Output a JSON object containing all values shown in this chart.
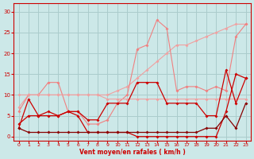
{
  "bg_color": "#cce8e8",
  "grid_color": "#aacccc",
  "line_color_light1": "#f0a0a0",
  "line_color_light2": "#f08080",
  "line_color_dark": "#cc0000",
  "xlabel": "Vent moyen/en rafales ( km/h )",
  "xlabel_color": "#cc0000",
  "tick_color": "#cc0000",
  "xlim": [
    -0.5,
    23.5
  ],
  "ylim": [
    -1,
    32
  ],
  "yticks": [
    0,
    5,
    10,
    15,
    20,
    25,
    30
  ],
  "xticks": [
    0,
    1,
    2,
    3,
    4,
    5,
    6,
    7,
    8,
    9,
    10,
    11,
    12,
    13,
    14,
    15,
    16,
    17,
    18,
    19,
    20,
    21,
    22,
    23
  ],
  "series": [
    {
      "x": [
        0,
        1,
        2,
        3,
        4,
        5,
        6,
        7,
        8,
        9,
        10,
        11,
        12,
        13,
        14,
        15,
        16,
        17,
        18,
        19,
        20,
        21,
        22,
        23
      ],
      "y": [
        7,
        10,
        10,
        10,
        10,
        10,
        10,
        10,
        10,
        10,
        11,
        12,
        14,
        16,
        18,
        20,
        22,
        22,
        23,
        24,
        25,
        26,
        27,
        27
      ],
      "color": "#f0a0a0",
      "lw": 0.8,
      "ms": 2.0
    },
    {
      "x": [
        0,
        1,
        2,
        3,
        4,
        5,
        6,
        7,
        8,
        9,
        10,
        11,
        12,
        13,
        14,
        15,
        16,
        17,
        18,
        19,
        20,
        21,
        22,
        23
      ],
      "y": [
        6,
        10,
        10,
        13,
        13,
        6,
        6,
        3,
        3,
        4,
        8,
        10,
        21,
        22,
        28,
        26,
        11,
        12,
        12,
        11,
        12,
        11,
        24,
        27
      ],
      "color": "#f08080",
      "lw": 0.8,
      "ms": 2.0
    },
    {
      "x": [
        0,
        1,
        2,
        3,
        4,
        5,
        6,
        7,
        8,
        9,
        10,
        11,
        12,
        13,
        14,
        15,
        16,
        17,
        18,
        19,
        20,
        21,
        22,
        23
      ],
      "y": [
        10,
        10,
        10,
        10,
        10,
        10,
        10,
        10,
        10,
        9,
        9,
        9,
        9,
        9,
        9,
        9,
        9,
        9,
        9,
        9,
        9,
        9,
        9,
        9
      ],
      "color": "#f0a0a0",
      "lw": 0.8,
      "ms": 2.0
    },
    {
      "x": [
        0,
        1,
        2,
        3,
        4,
        5,
        6,
        7,
        8,
        9,
        10,
        11,
        12,
        13,
        14,
        15,
        16,
        17,
        18,
        19,
        20,
        21,
        22,
        23
      ],
      "y": [
        2,
        9,
        5,
        5,
        5,
        6,
        5,
        1,
        1,
        1,
        1,
        1,
        0,
        0,
        0,
        0,
        0,
        0,
        0,
        0,
        0,
        6,
        15,
        14
      ],
      "color": "#cc0000",
      "lw": 0.9,
      "ms": 2.0
    },
    {
      "x": [
        0,
        1,
        2,
        3,
        4,
        5,
        6,
        7,
        8,
        9,
        10,
        11,
        12,
        13,
        14,
        15,
        16,
        17,
        18,
        19,
        20,
        21,
        22,
        23
      ],
      "y": [
        3,
        5,
        5,
        6,
        5,
        6,
        6,
        4,
        4,
        8,
        8,
        8,
        13,
        13,
        13,
        8,
        8,
        8,
        8,
        5,
        5,
        16,
        8,
        14
      ],
      "color": "#cc0000",
      "lw": 0.9,
      "ms": 2.0
    },
    {
      "x": [
        0,
        1,
        2,
        3,
        4,
        5,
        6,
        7,
        8,
        9,
        10,
        11,
        12,
        13,
        14,
        15,
        16,
        17,
        18,
        19,
        20,
        21,
        22,
        23
      ],
      "y": [
        2,
        1,
        1,
        1,
        1,
        1,
        1,
        1,
        1,
        1,
        1,
        1,
        1,
        1,
        1,
        1,
        1,
        1,
        1,
        2,
        2,
        5,
        2,
        8
      ],
      "color": "#880000",
      "lw": 0.9,
      "ms": 2.0
    }
  ]
}
